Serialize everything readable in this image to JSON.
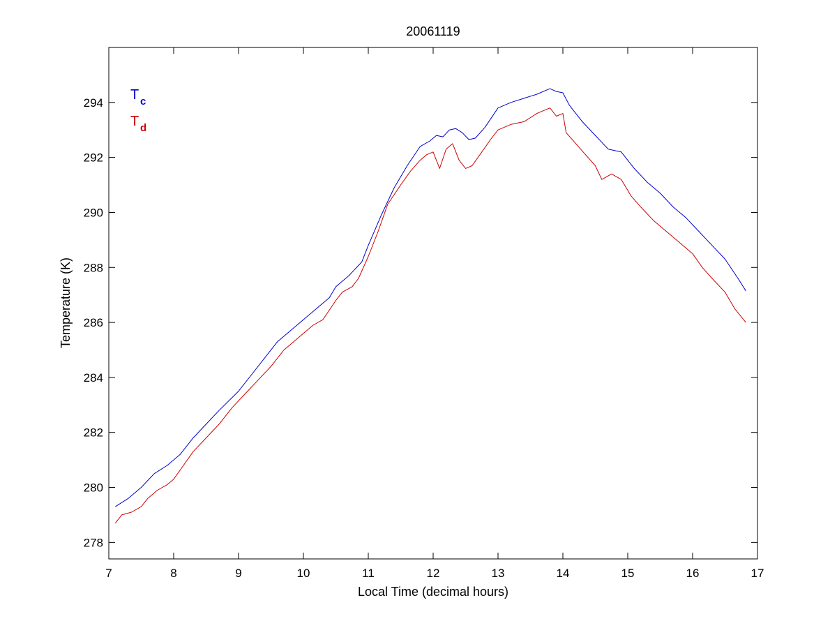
{
  "chart_data": {
    "type": "line",
    "title": "20061119",
    "xlabel": "Local Time (decimal hours)",
    "ylabel": "Temperature (K)",
    "xlim": [
      7,
      17
    ],
    "ylim": [
      277.4,
      296
    ],
    "xticks": [
      7,
      8,
      9,
      10,
      11,
      12,
      13,
      14,
      15,
      16,
      17
    ],
    "yticks": [
      278,
      280,
      282,
      284,
      286,
      288,
      290,
      292,
      294
    ],
    "grid": false,
    "legend_position": "top-left",
    "series": [
      {
        "name": "T",
        "subscript": "c",
        "color": "#0000cc",
        "points": [
          [
            7.1,
            279.3
          ],
          [
            7.3,
            279.6
          ],
          [
            7.5,
            280.0
          ],
          [
            7.7,
            280.5
          ],
          [
            7.9,
            280.8
          ],
          [
            8.1,
            281.2
          ],
          [
            8.3,
            281.8
          ],
          [
            8.5,
            282.3
          ],
          [
            8.7,
            282.8
          ],
          [
            9.0,
            283.5
          ],
          [
            9.2,
            284.1
          ],
          [
            9.4,
            284.7
          ],
          [
            9.6,
            285.3
          ],
          [
            9.8,
            285.7
          ],
          [
            10.0,
            286.1
          ],
          [
            10.2,
            286.5
          ],
          [
            10.4,
            286.9
          ],
          [
            10.5,
            287.3
          ],
          [
            10.7,
            287.7
          ],
          [
            10.9,
            288.2
          ],
          [
            11.0,
            288.8
          ],
          [
            11.2,
            289.9
          ],
          [
            11.4,
            290.9
          ],
          [
            11.6,
            291.7
          ],
          [
            11.8,
            292.4
          ],
          [
            11.95,
            292.6
          ],
          [
            12.05,
            292.8
          ],
          [
            12.15,
            292.75
          ],
          [
            12.25,
            293.0
          ],
          [
            12.35,
            293.05
          ],
          [
            12.45,
            292.9
          ],
          [
            12.55,
            292.65
          ],
          [
            12.65,
            292.7
          ],
          [
            12.8,
            293.1
          ],
          [
            13.0,
            293.8
          ],
          [
            13.2,
            294.0
          ],
          [
            13.4,
            294.15
          ],
          [
            13.6,
            294.3
          ],
          [
            13.8,
            294.5
          ],
          [
            13.9,
            294.4
          ],
          [
            14.0,
            294.35
          ],
          [
            14.1,
            293.9
          ],
          [
            14.3,
            293.3
          ],
          [
            14.5,
            292.8
          ],
          [
            14.7,
            292.3
          ],
          [
            14.9,
            292.2
          ],
          [
            15.1,
            291.6
          ],
          [
            15.3,
            291.1
          ],
          [
            15.5,
            290.7
          ],
          [
            15.7,
            290.2
          ],
          [
            15.9,
            289.8
          ],
          [
            16.1,
            289.3
          ],
          [
            16.3,
            288.8
          ],
          [
            16.5,
            288.3
          ],
          [
            16.7,
            287.6
          ],
          [
            16.82,
            287.15
          ]
        ]
      },
      {
        "name": "T",
        "subscript": "d",
        "color": "#cc0000",
        "points": [
          [
            7.1,
            278.7
          ],
          [
            7.2,
            279.0
          ],
          [
            7.35,
            279.1
          ],
          [
            7.5,
            279.3
          ],
          [
            7.6,
            279.6
          ],
          [
            7.75,
            279.9
          ],
          [
            7.9,
            280.1
          ],
          [
            8.0,
            280.3
          ],
          [
            8.15,
            280.8
          ],
          [
            8.3,
            281.3
          ],
          [
            8.5,
            281.8
          ],
          [
            8.7,
            282.3
          ],
          [
            8.9,
            282.9
          ],
          [
            9.1,
            283.4
          ],
          [
            9.3,
            283.9
          ],
          [
            9.5,
            284.4
          ],
          [
            9.7,
            285.0
          ],
          [
            9.85,
            285.3
          ],
          [
            10.0,
            285.6
          ],
          [
            10.15,
            285.9
          ],
          [
            10.3,
            286.1
          ],
          [
            10.5,
            286.8
          ],
          [
            10.6,
            287.1
          ],
          [
            10.75,
            287.3
          ],
          [
            10.85,
            287.6
          ],
          [
            11.0,
            288.4
          ],
          [
            11.15,
            289.3
          ],
          [
            11.3,
            290.3
          ],
          [
            11.5,
            291.0
          ],
          [
            11.65,
            291.5
          ],
          [
            11.8,
            291.9
          ],
          [
            11.9,
            292.1
          ],
          [
            12.0,
            292.2
          ],
          [
            12.1,
            291.6
          ],
          [
            12.2,
            292.3
          ],
          [
            12.3,
            292.5
          ],
          [
            12.4,
            291.9
          ],
          [
            12.5,
            291.6
          ],
          [
            12.6,
            291.7
          ],
          [
            12.75,
            292.2
          ],
          [
            12.9,
            292.7
          ],
          [
            13.0,
            293.0
          ],
          [
            13.2,
            293.2
          ],
          [
            13.4,
            293.3
          ],
          [
            13.6,
            293.6
          ],
          [
            13.8,
            293.8
          ],
          [
            13.9,
            293.5
          ],
          [
            14.0,
            293.6
          ],
          [
            14.05,
            292.9
          ],
          [
            14.2,
            292.5
          ],
          [
            14.35,
            292.1
          ],
          [
            14.5,
            291.7
          ],
          [
            14.6,
            291.2
          ],
          [
            14.75,
            291.4
          ],
          [
            14.9,
            291.2
          ],
          [
            15.05,
            290.6
          ],
          [
            15.2,
            290.2
          ],
          [
            15.4,
            289.7
          ],
          [
            15.6,
            289.3
          ],
          [
            15.8,
            288.9
          ],
          [
            16.0,
            288.5
          ],
          [
            16.15,
            288.0
          ],
          [
            16.3,
            287.6
          ],
          [
            16.5,
            287.1
          ],
          [
            16.65,
            286.5
          ],
          [
            16.82,
            286.0
          ]
        ]
      }
    ]
  }
}
